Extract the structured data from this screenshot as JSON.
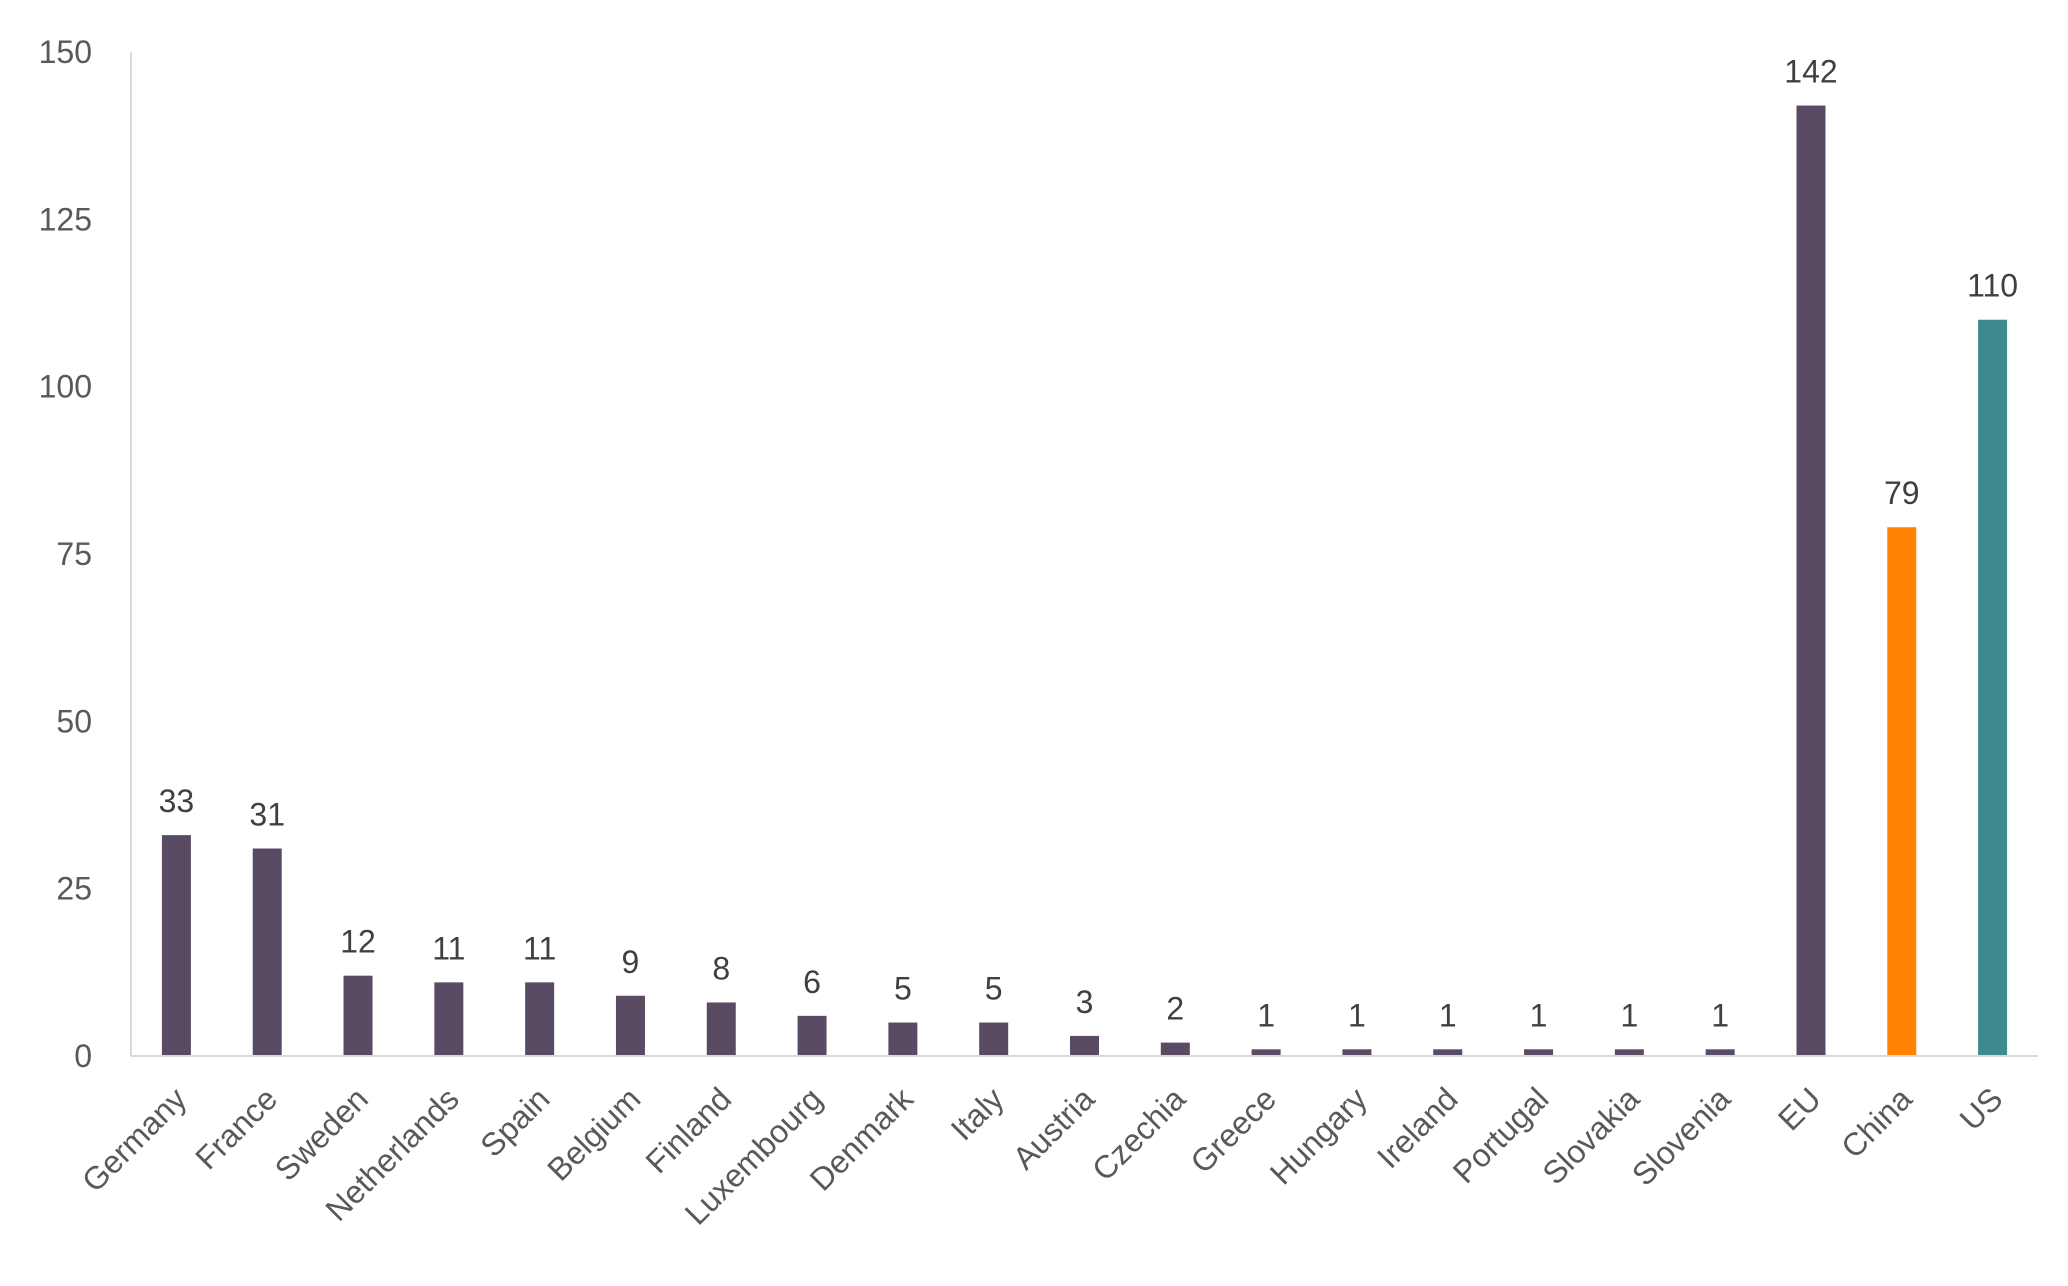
{
  "chart_data": {
    "type": "bar",
    "title": "",
    "xlabel": "",
    "ylabel": "",
    "ylim": [
      0,
      150
    ],
    "yticks": [
      0,
      25,
      50,
      75,
      100,
      125,
      150
    ],
    "grid": false,
    "legend": "none",
    "categories": [
      "Germany",
      "France",
      "Sweden",
      "Netherlands",
      "Spain",
      "Belgium",
      "Finland",
      "Luxembourg",
      "Denmark",
      "Italy",
      "Austria",
      "Czechia",
      "Greece",
      "Hungary",
      "Ireland",
      "Portugal",
      "Slovakia",
      "Slovenia",
      "EU",
      "China",
      "US"
    ],
    "values": [
      33,
      31,
      12,
      11,
      11,
      9,
      8,
      6,
      5,
      5,
      3,
      2,
      1,
      1,
      1,
      1,
      1,
      1,
      142,
      79,
      110
    ],
    "bar_colors": [
      "#584b63",
      "#584b63",
      "#584b63",
      "#584b63",
      "#584b63",
      "#584b63",
      "#584b63",
      "#584b63",
      "#584b63",
      "#584b63",
      "#584b63",
      "#584b63",
      "#584b63",
      "#584b63",
      "#584b63",
      "#584b63",
      "#584b63",
      "#584b63",
      "#584b63",
      "#ff8200",
      "#3d8a8f"
    ],
    "data_labels": true
  },
  "colors": {
    "default_bar": "#584b63",
    "china": "#ff8200",
    "us": "#3d8a8f",
    "axis": "#d9d9d9",
    "tick_text": "#595959",
    "label_text": "#404040"
  }
}
